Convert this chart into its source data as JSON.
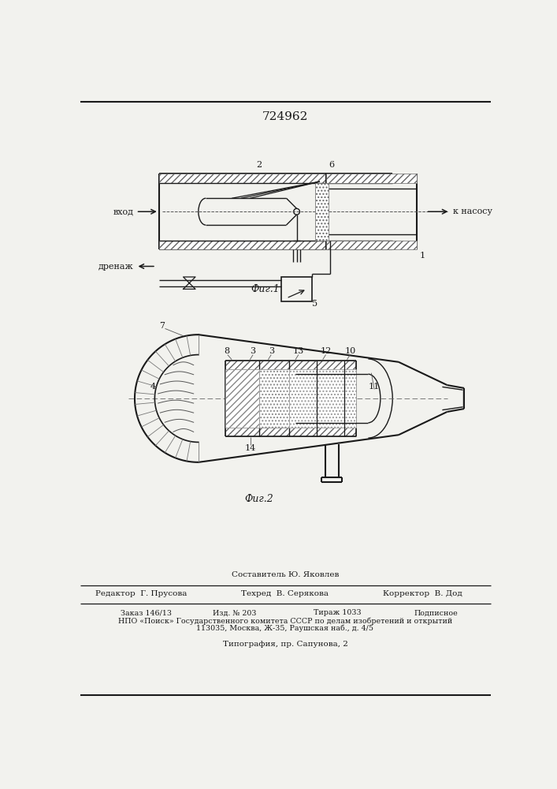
{
  "patent_number": "724962",
  "background_color": "#f2f2ee",
  "line_color": "#1a1a1a",
  "footer": {
    "compiler": "Составитель Ю. Яковлев",
    "editor": "Редактор  Г. Прусова",
    "techred": "Техред  В. Серякова",
    "corrector": "Корректор  В. Дод",
    "order": "Заказ 146/13",
    "izdanie": "Изд. № 203",
    "tirazh": "Тираж 1033",
    "podpisnoe": "Подписное",
    "npo": "НПО «Поиск» Государственного комитета СССР по делам изобретений и открытий",
    "address": "113035, Москва, Ж-35, Раушская наб., д. 4/5",
    "tipografia": "Типография, пр. Сапунова, 2"
  },
  "fig1_label": "Фиг.1",
  "fig2_label": "Фиг.2",
  "vhod": "вход",
  "drenazh": "дренаж",
  "k_nasosu": "к насосу"
}
